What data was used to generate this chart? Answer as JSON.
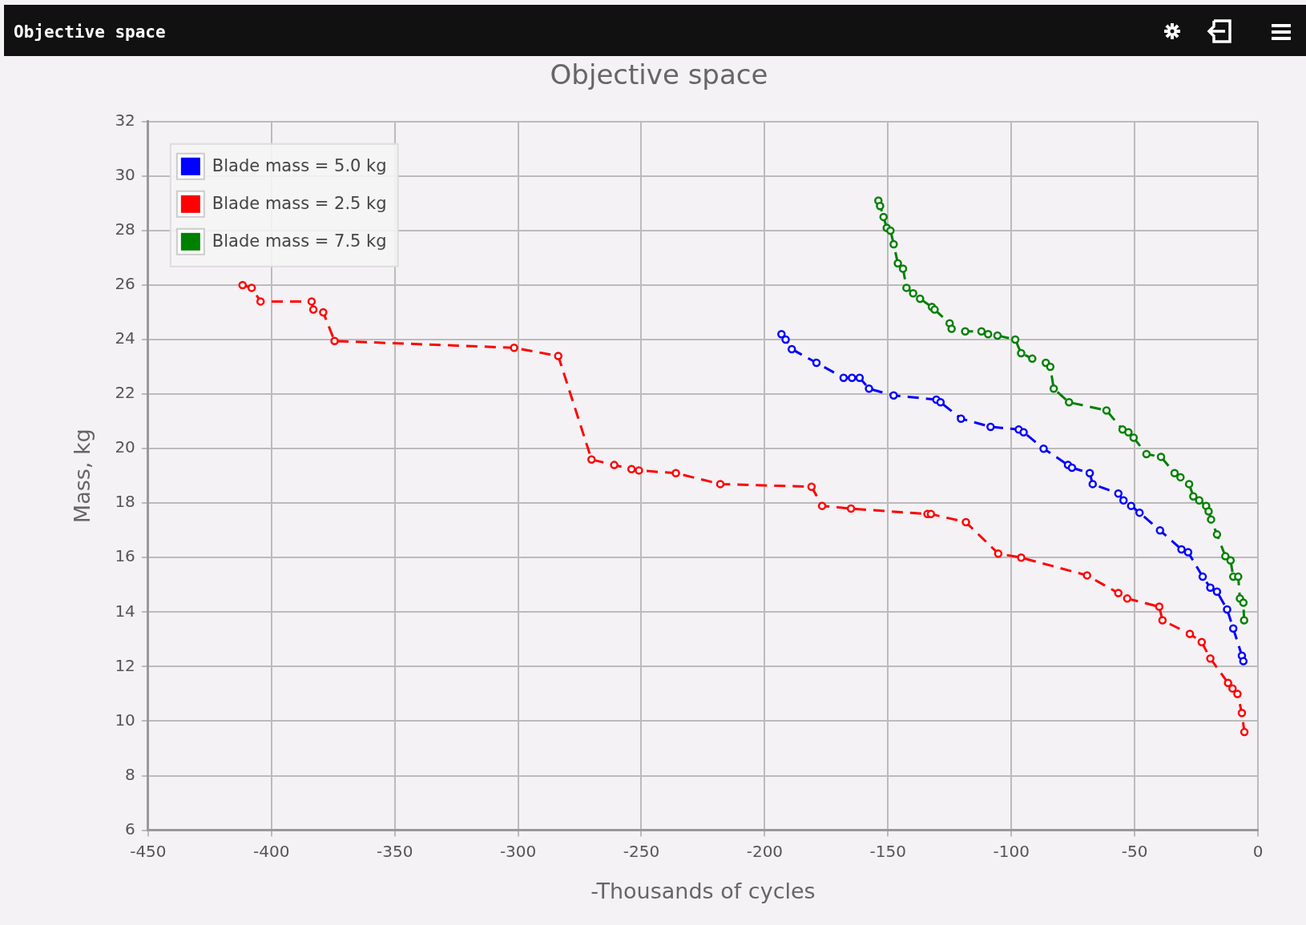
{
  "chart_data": {
    "type": "line",
    "title": "Objective space",
    "xlabel": "-Thousands of cycles",
    "ylabel": "Mass, kg",
    "xlim": [
      -450,
      0
    ],
    "xticks": [
      -450,
      -400,
      -350,
      -300,
      -250,
      -200,
      -150,
      -100,
      -50,
      0
    ],
    "ylim": [
      6,
      32
    ],
    "yticks": [
      6,
      8,
      10,
      12,
      14,
      16,
      18,
      20,
      22,
      24,
      26,
      28,
      30,
      32
    ],
    "grid": true,
    "legend": "top left",
    "marker": "circle",
    "line_style": "dashed",
    "series": [
      {
        "name": "Blade mass = 5.0 kg",
        "color": "#0000ff",
        "x": [
          -193.2,
          -191.5,
          -189,
          -179,
          -168,
          -164.6,
          -161.5,
          -157.7,
          -147.7,
          -130.4,
          -128.7,
          -120.4,
          -108.4,
          -97,
          -95,
          -86.9,
          -77,
          -75.4,
          -68.2,
          -67,
          -56.6,
          -54.5,
          -51.4,
          -48,
          -39.7,
          -31,
          -28.3,
          -22.4,
          -19.3,
          -16.6,
          -12.5,
          -10,
          -6.5,
          -5.9
        ],
        "values": [
          24.2,
          24.0,
          23.65,
          23.15,
          22.6,
          22.6,
          22.6,
          22.2,
          21.95,
          21.8,
          21.7,
          21.1,
          20.8,
          20.7,
          20.6,
          20.0,
          19.4,
          19.3,
          19.1,
          18.7,
          18.35,
          18.1,
          17.9,
          17.65,
          17.0,
          16.3,
          16.2,
          15.3,
          14.9,
          14.75,
          14.1,
          13.4,
          12.4,
          12.2
        ]
      },
      {
        "name": "Blade mass = 2.5 kg",
        "color": "#ff0000",
        "x": [
          -411.7,
          -408,
          -404.4,
          -383.7,
          -383,
          -379,
          -374.4,
          -301.6,
          -283.7,
          -270.2,
          -261,
          -254,
          -251,
          -236,
          -218,
          -181,
          -176.7,
          -165,
          -134,
          -132.6,
          -118.4,
          -105.3,
          -96,
          -69.3,
          -56.6,
          -53,
          -40,
          -38.7,
          -27.6,
          -22.8,
          -19.3,
          -12.1,
          -10.3,
          -8.3,
          -6.5,
          -5.5
        ],
        "values": [
          26.0,
          25.9,
          25.4,
          25.4,
          25.1,
          25.0,
          23.95,
          23.7,
          23.4,
          19.6,
          19.4,
          19.25,
          19.2,
          19.1,
          18.7,
          18.6,
          17.9,
          17.8,
          17.6,
          17.6,
          17.3,
          16.15,
          16.0,
          15.35,
          14.7,
          14.5,
          14.2,
          13.7,
          13.2,
          12.9,
          12.3,
          11.4,
          11.2,
          11.0,
          10.3,
          9.6
        ]
      },
      {
        "name": "Blade mass = 7.5 kg",
        "color": "#008000",
        "x": [
          -153.9,
          -153.2,
          -151.8,
          -150.5,
          -149,
          -147.7,
          -146,
          -143.9,
          -142.5,
          -139.8,
          -137,
          -132.2,
          -131.1,
          -125,
          -124.2,
          -118.7,
          -112.1,
          -109.4,
          -105.6,
          -98.4,
          -96,
          -91.5,
          -86,
          -84.2,
          -82.8,
          -76.6,
          -61.4,
          -54.9,
          -52.5,
          -50.4,
          -45.2,
          -39.3,
          -33.8,
          -31.4,
          -27.9,
          -26.2,
          -23.8,
          -21,
          -20,
          -19,
          -16.6,
          -13.2,
          -11.1,
          -10,
          -8,
          -7.3,
          -5.9,
          -5.6
        ],
        "values": [
          29.1,
          28.9,
          28.5,
          28.1,
          28.0,
          27.5,
          26.8,
          26.6,
          25.9,
          25.7,
          25.5,
          25.2,
          25.1,
          24.6,
          24.4,
          24.3,
          24.3,
          24.2,
          24.15,
          24.0,
          23.5,
          23.3,
          23.15,
          23.0,
          22.2,
          21.7,
          21.4,
          20.7,
          20.6,
          20.4,
          19.8,
          19.7,
          19.1,
          18.95,
          18.7,
          18.25,
          18.1,
          17.9,
          17.7,
          17.4,
          16.85,
          16.05,
          15.9,
          15.3,
          15.3,
          14.5,
          14.35,
          13.7
        ]
      }
    ]
  }
}
